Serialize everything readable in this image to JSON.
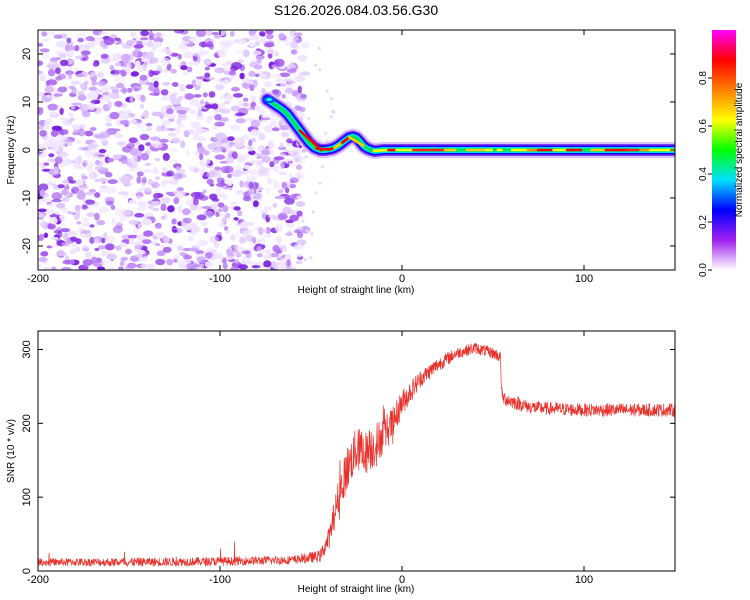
{
  "title": "S126.2026.084.03.56.G30",
  "chart_data": [
    {
      "type": "heatmap",
      "name": "spectrogram",
      "xlabel": "Height of straight line (km)",
      "ylabel": "Frequency (Hz)",
      "xlim": [
        -200,
        150
      ],
      "ylim": [
        -25,
        25
      ],
      "xticks": [
        -200,
        -100,
        0,
        100
      ],
      "yticks": [
        -20,
        -10,
        0,
        10,
        20
      ],
      "noise_region_x": [
        -200,
        -57
      ],
      "ridge": {
        "x": [
          -74,
          -70,
          -66,
          -63,
          -60,
          -57,
          -54,
          -51,
          -48,
          -45,
          -42,
          -38,
          -35,
          -32,
          -29,
          -27,
          -25,
          -23,
          -21,
          -19,
          -17,
          -15,
          -10,
          -5,
          0,
          150
        ],
        "y": [
          10.5,
          9.5,
          8.5,
          7.5,
          6.0,
          4.5,
          3.0,
          1.5,
          0.5,
          0.0,
          0.0,
          0.3,
          0.9,
          1.8,
          2.6,
          2.8,
          2.5,
          1.7,
          0.8,
          0.3,
          0.0,
          -0.2,
          0.0,
          0.0,
          0.0,
          0.0
        ]
      },
      "colorbar": {
        "label": "Normalized spectral amplitude",
        "range": [
          0.0,
          1.0
        ],
        "ticks": [
          "0.0",
          "0.2",
          "0.4",
          "0.6",
          "0.8"
        ],
        "colors": [
          "#ffffff",
          "#a020f0",
          "#0000ff",
          "#00e0ff",
          "#00ff00",
          "#ffff00",
          "#ff8000",
          "#ff0000",
          "#ff00ff"
        ]
      }
    },
    {
      "type": "line",
      "name": "snr",
      "xlabel": "Height of straight line (km)",
      "ylabel": "SNR (10 * v/v)",
      "xlim": [
        -200,
        150
      ],
      "ylim": [
        0,
        325
      ],
      "xticks": [
        -200,
        -100,
        0,
        100
      ],
      "yticks": [
        0,
        100,
        200,
        300
      ],
      "series": [
        {
          "name": "SNR",
          "color": "#e8302a",
          "x": [
            -200,
            -150,
            -100,
            -60,
            -45,
            -40,
            -35,
            -30,
            -25,
            -20,
            -15,
            -10,
            -5,
            0,
            10,
            20,
            30,
            40,
            50,
            54,
            55,
            60,
            70,
            80,
            100,
            120,
            150
          ],
          "y": [
            12,
            12,
            13,
            15,
            20,
            45,
            100,
            140,
            165,
            160,
            170,
            185,
            200,
            228,
            260,
            280,
            295,
            302,
            295,
            290,
            235,
            230,
            222,
            220,
            218,
            218,
            218
          ],
          "noise": [
            5,
            6,
            6,
            6,
            8,
            15,
            25,
            30,
            30,
            30,
            30,
            25,
            22,
            18,
            12,
            10,
            8,
            8,
            8,
            8,
            10,
            10,
            9,
            9,
            9,
            9,
            9
          ]
        }
      ]
    }
  ]
}
